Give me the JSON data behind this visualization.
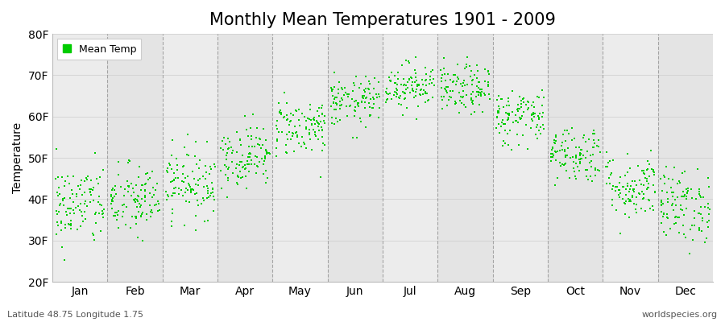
{
  "title": "Monthly Mean Temperatures 1901 - 2009",
  "ylabel": "Temperature",
  "subtitle_left": "Latitude 48.75 Longitude 1.75",
  "subtitle_right": "worldspecies.org",
  "legend_label": "Mean Temp",
  "ylim": [
    20,
    80
  ],
  "yticks": [
    20,
    30,
    40,
    50,
    60,
    70,
    80
  ],
  "ytick_labels": [
    "20F",
    "30F",
    "40F",
    "50F",
    "60F",
    "70F",
    "80F"
  ],
  "months": [
    "Jan",
    "Feb",
    "Mar",
    "Apr",
    "May",
    "Jun",
    "Jul",
    "Aug",
    "Sep",
    "Oct",
    "Nov",
    "Dec"
  ],
  "month_means_F": [
    38.5,
    39.5,
    44.0,
    50.5,
    57.5,
    63.5,
    67.5,
    66.5,
    60.0,
    51.0,
    43.0,
    38.5
  ],
  "month_stds_F": [
    5.0,
    4.5,
    4.2,
    3.8,
    3.5,
    3.0,
    2.8,
    3.0,
    3.5,
    3.5,
    4.0,
    4.5
  ],
  "n_years": 109,
  "point_color": "#00cc00",
  "background_color": "#ffffff",
  "plot_bg_even": "#ececec",
  "plot_bg_odd": "#e4e4e4",
  "grid_line_color": "#888888",
  "title_fontsize": 15,
  "axis_fontsize": 10,
  "tick_fontsize": 10,
  "random_seed": 42
}
